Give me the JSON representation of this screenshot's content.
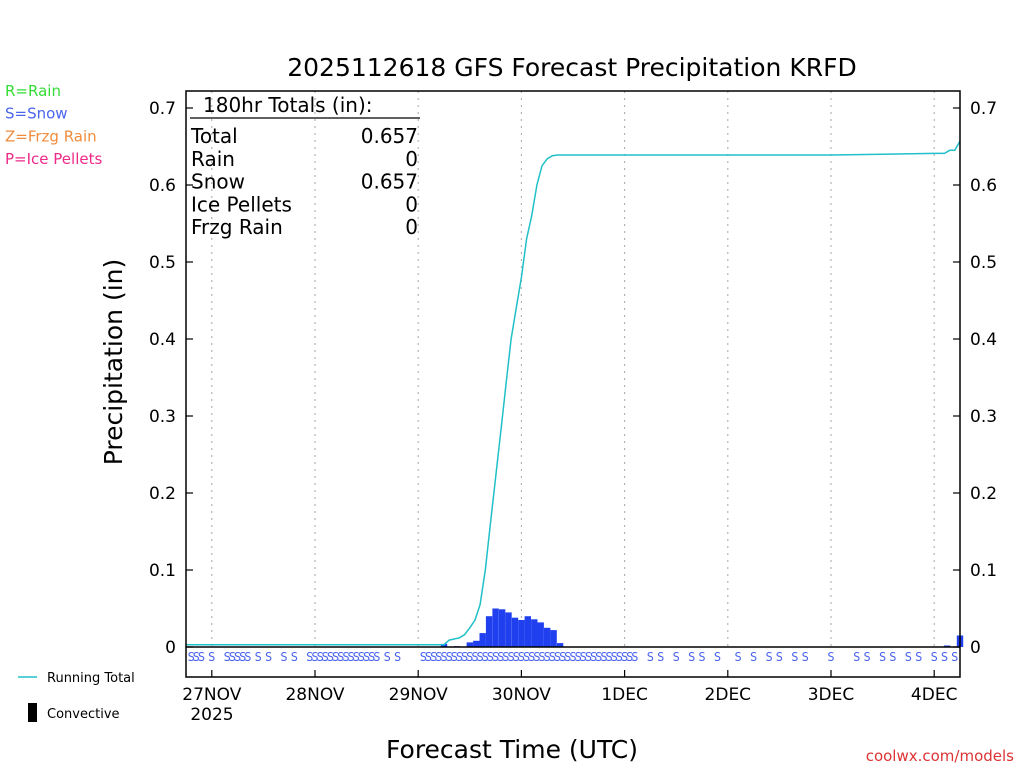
{
  "chart_data": {
    "type": "bar",
    "title": "2025112618 GFS Forecast Precipitation KRFD",
    "ylabel": "Precipitation (in)",
    "xlabel": "Forecast Time (UTC)",
    "ylim": [
      0,
      0.72
    ],
    "xlim": [
      -0.25,
      7.25
    ],
    "yticks": [
      0,
      0.1,
      0.2,
      0.3,
      0.4,
      0.5,
      0.6,
      0.7
    ],
    "ytick_labels": [
      "0",
      "0.1",
      "0.2",
      "0.3",
      "0.4",
      "0.5",
      "0.6",
      "0.7"
    ],
    "xticks": [
      0,
      1,
      2,
      3,
      4,
      5,
      6,
      7
    ],
    "xtick_labels": [
      "27NOV",
      "28NOV",
      "29NOV",
      "30NOV",
      "1DEC",
      "2DEC",
      "3DEC",
      "4DEC"
    ],
    "year_label": "2025",
    "grid": true,
    "ptype_legend": [
      {
        "text": "R=Rain",
        "color": "#33dd33"
      },
      {
        "text": "S=Snow",
        "color": "#4a64ee"
      },
      {
        "text": "Z=Frzg Rain",
        "color": "#f08c3c"
      },
      {
        "text": "P=Ice Pellets",
        "color": "#ee2a88"
      }
    ],
    "series_legend": [
      {
        "text": "Running Total",
        "color": "#20c0c8"
      },
      {
        "text": "Convective",
        "color": "#000000"
      }
    ],
    "totals": {
      "header": "180hr Totals (in):",
      "rows": [
        {
          "label": "Total",
          "value": "0.657"
        },
        {
          "label": "Rain",
          "value": "0"
        },
        {
          "label": "Snow",
          "value": "0.657"
        },
        {
          "label": "Ice Pellets",
          "value": "0"
        },
        {
          "label": "Frzg Rain",
          "value": "0"
        }
      ]
    },
    "bars": {
      "color": "#2040f0",
      "x": [
        2.25,
        2.375,
        2.5,
        2.5625,
        2.625,
        2.6875,
        2.75,
        2.8125,
        2.875,
        2.9375,
        3.0,
        3.0625,
        3.125,
        3.1875,
        3.25,
        3.3125,
        3.375,
        7.125,
        7.25
      ],
      "values": [
        0.004,
        0.001,
        0.006,
        0.008,
        0.018,
        0.04,
        0.05,
        0.049,
        0.045,
        0.038,
        0.035,
        0.04,
        0.036,
        0.032,
        0.025,
        0.022,
        0.005,
        0.002,
        0.015
      ]
    },
    "running_total": {
      "color": "#20c0c8",
      "x": [
        -0.25,
        2.25,
        2.3,
        2.4,
        2.45,
        2.5,
        2.55,
        2.6,
        2.65,
        2.7,
        2.75,
        2.8,
        2.85,
        2.9,
        2.95,
        3.0,
        3.05,
        3.1,
        3.15,
        3.2,
        3.25,
        3.3,
        3.35,
        3.4,
        4.0,
        5.0,
        6.0,
        6.5,
        7.0,
        7.1,
        7.15,
        7.2,
        7.25
      ],
      "values": [
        0.003,
        0.003,
        0.009,
        0.012,
        0.016,
        0.025,
        0.035,
        0.055,
        0.1,
        0.16,
        0.22,
        0.28,
        0.34,
        0.4,
        0.44,
        0.48,
        0.53,
        0.56,
        0.6,
        0.625,
        0.634,
        0.638,
        0.639,
        0.639,
        0.639,
        0.639,
        0.639,
        0.64,
        0.641,
        0.641,
        0.645,
        0.645,
        0.657
      ]
    },
    "ptype_row": {
      "color": "#4a64ee",
      "letter": "S",
      "x": [
        -0.2,
        -0.15,
        -0.1,
        0.0,
        0.15,
        0.2,
        0.25,
        0.3,
        0.35,
        0.45,
        0.55,
        0.7,
        0.8,
        0.95,
        1.0,
        1.05,
        1.1,
        1.15,
        1.2,
        1.25,
        1.3,
        1.35,
        1.4,
        1.45,
        1.5,
        1.55,
        1.6,
        1.7,
        1.8,
        2.05,
        2.1,
        2.15,
        2.2,
        2.25,
        2.3,
        2.35,
        2.4,
        2.45,
        2.5,
        2.55,
        2.6,
        2.65,
        2.7,
        2.75,
        2.8,
        2.85,
        2.9,
        2.95,
        3.0,
        3.05,
        3.1,
        3.15,
        3.2,
        3.25,
        3.3,
        3.35,
        3.4,
        3.45,
        3.5,
        3.55,
        3.6,
        3.65,
        3.7,
        3.75,
        3.8,
        3.85,
        3.9,
        3.95,
        4.0,
        4.05,
        4.1,
        4.25,
        4.35,
        4.5,
        4.65,
        4.75,
        4.9,
        5.1,
        5.25,
        5.4,
        5.5,
        5.65,
        5.75,
        6.0,
        6.25,
        6.35,
        6.5,
        6.6,
        6.75,
        6.85,
        7.0,
        7.1,
        7.2
      ]
    }
  },
  "credit": "coolwx.com/models"
}
